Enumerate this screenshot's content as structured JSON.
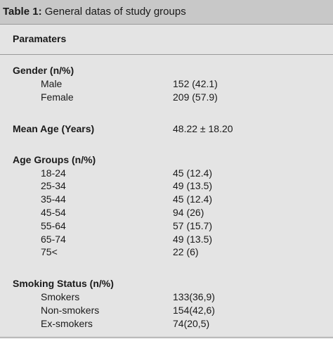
{
  "table": {
    "title_prefix": "Table 1:",
    "title_text": " General datas of study groups",
    "column_header": "Paramaters",
    "sections": [
      {
        "label": "Gender (n/%)",
        "rows": [
          {
            "label": "Male",
            "value": "152 (42.1)"
          },
          {
            "label": "Female",
            "value": "209 (57.9)"
          }
        ]
      },
      {
        "label": "Mean Age (Years)",
        "value": "48.22 ± 18.20",
        "rows": []
      },
      {
        "label": "Age Groups (n/%)",
        "rows": [
          {
            "label": "18-24",
            "value": "45 (12.4)"
          },
          {
            "label": "25-34",
            "value": "49 (13.5)"
          },
          {
            "label": "35-44",
            "value": "45 (12.4)"
          },
          {
            "label": "45-54",
            "value": "94 (26)"
          },
          {
            "label": "55-64",
            "value": "57 (15.7)"
          },
          {
            "label": "65-74",
            "value": "49 (13.5)"
          },
          {
            "label": "75<",
            "value": "22 (6)"
          }
        ]
      },
      {
        "label": "Smoking Status (n/%)",
        "rows": [
          {
            "label": "Smokers",
            "value": "133(36,9)"
          },
          {
            "label": "Non-smokers",
            "value": "154(42,6)"
          },
          {
            "label": "Ex-smokers",
            "value": "74(20,5)"
          }
        ]
      }
    ]
  }
}
